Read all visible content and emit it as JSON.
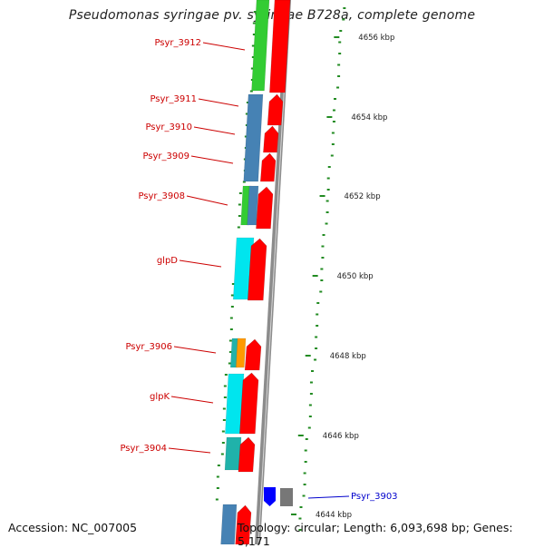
{
  "title": "Pseudomonas syringae pv. syringae B728a, complete genome",
  "footer": {
    "accession": "Accession: NC_007005",
    "summary": "Topology: circular; Length: 6,093,698 bp; Genes: 5,171"
  },
  "colors": {
    "label_red": "#cc0000",
    "label_blue": "#0000cc",
    "gc_dash": "#228b22",
    "backbone": "#999999",
    "red_gene": "#ff0000",
    "green_feature": "#33cc33",
    "steel_feature": "#4682b4",
    "cyan_feature": "#00e5ee",
    "teal_feature": "#20b2aa",
    "orange_feature": "#ff9900",
    "blue_gene": "#0000ff",
    "gray_gene": "#777777"
  },
  "gene_labels": [
    {
      "name": "Psyr_3912",
      "color": "red"
    },
    {
      "name": "Psyr_3911",
      "color": "red"
    },
    {
      "name": "Psyr_3910",
      "color": "red"
    },
    {
      "name": "Psyr_3909",
      "color": "red"
    },
    {
      "name": "Psyr_3908",
      "color": "red"
    },
    {
      "name": "glpD",
      "color": "red"
    },
    {
      "name": "Psyr_3906",
      "color": "red"
    },
    {
      "name": "glpK",
      "color": "red"
    },
    {
      "name": "Psyr_3904",
      "color": "red"
    },
    {
      "name": "Psyr_3903",
      "color": "blue"
    }
  ],
  "scale_ticks": [
    "4656 kbp",
    "4654 kbp",
    "4652 kbp",
    "4650 kbp",
    "4648 kbp",
    "4646 kbp",
    "4644 kbp"
  ]
}
